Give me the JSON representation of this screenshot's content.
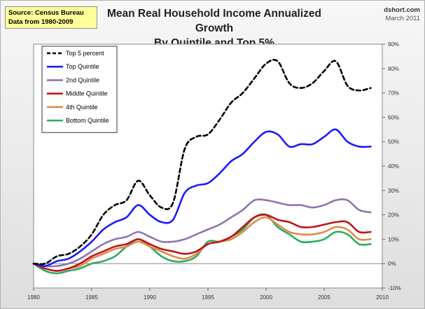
{
  "source": {
    "line1": "Source: Census Bureau",
    "line2": "Data from 1980-2009"
  },
  "brand": {
    "site": "dshort.com",
    "date": "March 2011"
  },
  "chart_data": {
    "type": "line",
    "title": "Mean Real Household Income Annualized Growth",
    "subtitle": "By Quintile and Top 5%",
    "xlabel": "",
    "ylabel": "",
    "xlim": [
      1980,
      2010
    ],
    "ylim": [
      -10,
      90
    ],
    "x_ticks": [
      1980,
      1985,
      1990,
      1995,
      2000,
      2005,
      2010
    ],
    "x_tick_labels": [
      "1980",
      "1985",
      "1990",
      "1995",
      "2000",
      "2005",
      "2010"
    ],
    "y_ticks": [
      -10,
      0,
      10,
      20,
      30,
      40,
      50,
      60,
      70,
      80,
      90
    ],
    "y_tick_labels": [
      "-10%",
      "0%",
      "10%",
      "20%",
      "30%",
      "40%",
      "50%",
      "60%",
      "70%",
      "80%",
      "90%"
    ],
    "y_axis_side": "right",
    "grid": false,
    "legend_position": "top-left",
    "x": [
      1980,
      1981,
      1982,
      1983,
      1984,
      1985,
      1986,
      1987,
      1988,
      1989,
      1990,
      1991,
      1992,
      1993,
      1994,
      1995,
      1996,
      1997,
      1998,
      1999,
      2000,
      2001,
      2002,
      2003,
      2004,
      2005,
      2006,
      2007,
      2008,
      2009
    ],
    "series": [
      {
        "name": "Top 5 percent",
        "color": "#000000",
        "dash": true,
        "values": [
          0,
          0,
          3,
          4,
          7,
          12,
          20,
          24,
          26,
          34,
          28,
          23,
          25,
          47,
          52,
          53,
          59,
          66,
          70,
          76,
          82,
          83,
          74,
          72,
          74,
          79,
          83,
          73,
          71,
          72
        ]
      },
      {
        "name": "Top Quintile",
        "color": "#1a1aff",
        "dash": false,
        "values": [
          0,
          -1,
          1,
          2,
          5,
          9,
          14,
          17,
          19,
          24,
          20,
          17,
          18,
          29,
          32,
          33,
          37,
          42,
          45,
          50,
          54,
          53,
          48,
          49,
          49,
          52,
          55,
          50,
          48,
          48
        ]
      },
      {
        "name": "2nd Quintile",
        "color": "#8f74b0",
        "dash": false,
        "values": [
          0,
          -1,
          -1,
          0,
          2,
          5,
          8,
          10,
          11,
          13,
          11,
          9,
          9,
          10,
          12,
          14,
          16,
          19,
          22,
          26,
          26,
          25,
          24,
          24,
          23,
          24,
          26,
          26,
          22,
          21
        ]
      },
      {
        "name": "Middle Quintile",
        "color": "#c0151b",
        "dash": false,
        "values": [
          0,
          -2,
          -3,
          -2,
          0,
          3,
          5,
          7,
          8,
          10,
          8,
          6,
          5,
          4,
          5,
          8,
          9,
          11,
          15,
          19,
          20,
          18,
          17,
          15,
          15,
          16,
          17,
          17,
          13,
          13
        ]
      },
      {
        "name": "4th Quintile",
        "color": "#e08a4a",
        "dash": false,
        "values": [
          0,
          -2,
          -3,
          -2,
          -1,
          2,
          4,
          6,
          7,
          9,
          7,
          5,
          3,
          2,
          4,
          8,
          9,
          10,
          13,
          17,
          19,
          16,
          13,
          12,
          12,
          13,
          15,
          14,
          10,
          10
        ]
      },
      {
        "name": "Bottom Quintile",
        "color": "#2daa5f",
        "dash": false,
        "values": [
          0,
          -3,
          -4,
          -3,
          -2,
          0,
          1,
          3,
          7,
          10,
          7,
          3,
          1,
          1,
          3,
          9,
          9,
          11,
          14,
          19,
          20,
          15,
          12,
          9,
          9,
          10,
          13,
          12,
          8,
          8
        ]
      }
    ]
  }
}
